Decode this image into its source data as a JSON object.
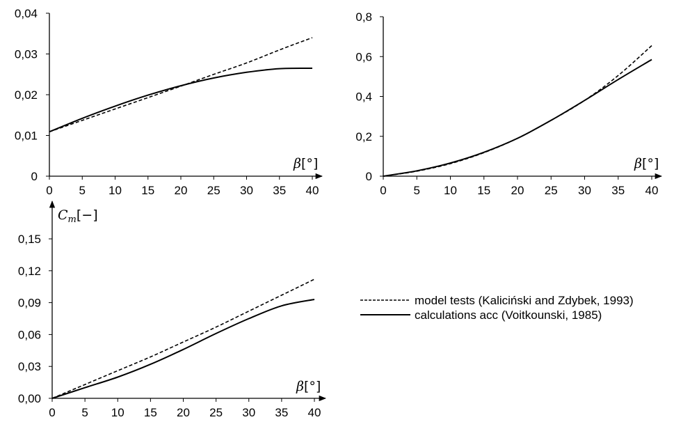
{
  "chart_data": [
    {
      "type": "line",
      "xlabel": "β[°]",
      "ylabel": "",
      "xlim": [
        0,
        40
      ],
      "ylim": [
        0,
        0.04
      ],
      "x_ticks": [
        "0",
        "5",
        "10",
        "15",
        "20",
        "25",
        "30",
        "35",
        "40"
      ],
      "y_ticks": [
        "0",
        "0,01",
        "0,02",
        "0,03",
        "0,04"
      ],
      "x": [
        0,
        5,
        10,
        15,
        20,
        25,
        30,
        35,
        40
      ],
      "series": [
        {
          "style": "dashed",
          "values": [
            0.0109,
            0.0137,
            0.0165,
            0.0193,
            0.0221,
            0.025,
            0.0278,
            0.031,
            0.034
          ]
        },
        {
          "style": "solid",
          "values": [
            0.0109,
            0.0142,
            0.0172,
            0.0199,
            0.0222,
            0.0241,
            0.0255,
            0.0264,
            0.0265
          ]
        }
      ],
      "grid": false
    },
    {
      "type": "line",
      "xlabel": "β[°]",
      "ylabel": "",
      "xlim": [
        0,
        40
      ],
      "ylim": [
        0,
        0.8
      ],
      "x_ticks": [
        "0",
        "5",
        "10",
        "15",
        "20",
        "25",
        "30",
        "35",
        "40"
      ],
      "y_ticks": [
        "0",
        "0,2",
        "0,4",
        "0,6",
        "0,8"
      ],
      "x": [
        0,
        5,
        10,
        15,
        20,
        25,
        30,
        35,
        40
      ],
      "series": [
        {
          "style": "dashed",
          "values": [
            0.0,
            0.025,
            0.063,
            0.118,
            0.19,
            0.28,
            0.38,
            0.505,
            0.655
          ]
        },
        {
          "style": "solid",
          "values": [
            0.0,
            0.027,
            0.066,
            0.12,
            0.19,
            0.28,
            0.38,
            0.485,
            0.585
          ]
        }
      ],
      "grid": false
    },
    {
      "type": "line",
      "xlabel": "β[°]",
      "ylabel": "C_m[−]",
      "ylabel_main": "C",
      "ylabel_sub": "m",
      "ylabel_unit": "[−]",
      "xlim": [
        0,
        40
      ],
      "ylim": [
        0,
        0.15
      ],
      "x_ticks": [
        "0",
        "5",
        "10",
        "15",
        "20",
        "25",
        "30",
        "35",
        "40"
      ],
      "y_ticks": [
        "0,00",
        "0,03",
        "0,06",
        "0,09",
        "0,12",
        "0,15"
      ],
      "x": [
        0,
        5,
        10,
        15,
        20,
        25,
        30,
        35,
        40
      ],
      "series": [
        {
          "style": "dashed",
          "values": [
            0.0,
            0.013,
            0.026,
            0.039,
            0.053,
            0.067,
            0.082,
            0.097,
            0.112
          ]
        },
        {
          "style": "solid",
          "values": [
            0.0,
            0.01,
            0.02,
            0.032,
            0.046,
            0.061,
            0.075,
            0.087,
            0.093
          ]
        }
      ],
      "grid": false
    }
  ],
  "legend": {
    "placement": "right of bottom chart",
    "entries": [
      {
        "style": "dashed",
        "label": "model tests (Kaliciński and Zdybek, 1993)"
      },
      {
        "style": "solid",
        "label": "calculations acc (Voitkounski, 1985)"
      }
    ]
  }
}
